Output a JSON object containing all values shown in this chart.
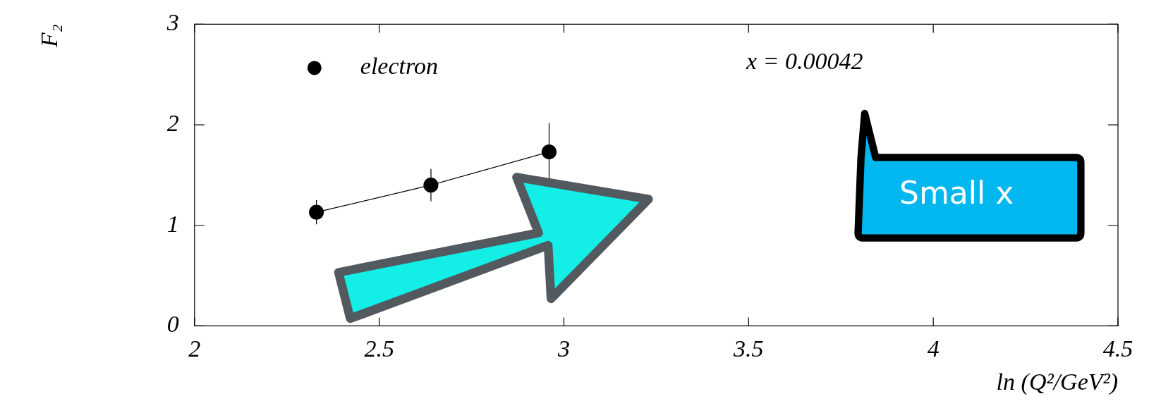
{
  "chart_data": {
    "type": "line",
    "xlabel": "ln (Q²/GeV²)",
    "ylabel": "F₂",
    "xlim": [
      2,
      4.5
    ],
    "xticks": [
      2,
      2.5,
      3,
      3.5,
      4,
      4.5
    ],
    "ylim": [
      0,
      3
    ],
    "yticks": [
      0,
      1,
      2,
      3
    ],
    "legend": "top left",
    "marker": "circle",
    "line_style": "solid",
    "series": [
      {
        "name": "electron",
        "color": "#000000",
        "x": [
          2.33,
          2.64,
          2.96
        ],
        "values": [
          1.13,
          1.4,
          1.73
        ],
        "errors": [
          0.12,
          0.16,
          0.29
        ]
      }
    ],
    "annotations": [
      "x = 0.00042",
      "Small x"
    ]
  }
}
